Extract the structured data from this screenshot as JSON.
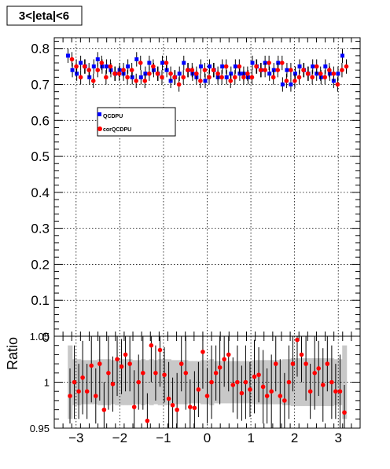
{
  "title": "3<|eta|<6",
  "colors": {
    "series_a": "#0000ff",
    "series_b": "#ff0000",
    "band": "#c8c8c8",
    "frame": "#000000"
  },
  "chart_data": [
    {
      "type": "scatter",
      "panel": "top",
      "title": "3<|eta|<6",
      "xlabel": "",
      "ylabel": "",
      "xlim": [
        -3.5,
        3.5
      ],
      "ylim": [
        0,
        0.83
      ],
      "grid": true,
      "legend_position": "upper-left",
      "x_ticks": [
        -3,
        -2,
        -1,
        0,
        1,
        2,
        3
      ],
      "y_ticks": [
        0.1,
        0.2,
        0.3,
        0.4,
        0.5,
        0.6,
        0.7,
        0.8
      ],
      "y_tick_labels": [
        "0.1",
        "0.2",
        "0.3",
        "0.4",
        "0.5",
        "0.6",
        "0.7",
        "0.8"
      ],
      "x": [
        -3.14,
        -3.04,
        -2.94,
        -2.85,
        -2.75,
        -2.65,
        -2.55,
        -2.46,
        -2.36,
        -2.26,
        -2.16,
        -2.06,
        -1.96,
        -1.87,
        -1.77,
        -1.67,
        -1.57,
        -1.47,
        -1.37,
        -1.28,
        -1.18,
        -1.08,
        -0.98,
        -0.88,
        -0.79,
        -0.69,
        -0.59,
        -0.49,
        -0.39,
        -0.29,
        -0.2,
        -0.1,
        0.0,
        0.1,
        0.2,
        0.29,
        0.39,
        0.49,
        0.59,
        0.69,
        0.79,
        0.88,
        0.98,
        1.08,
        1.18,
        1.28,
        1.37,
        1.47,
        1.57,
        1.67,
        1.77,
        1.87,
        1.96,
        2.06,
        2.16,
        2.26,
        2.36,
        2.46,
        2.55,
        2.65,
        2.75,
        2.85,
        2.94,
        3.04,
        3.14
      ],
      "series": [
        {
          "name": "QCDPU",
          "marker": "square",
          "values": [
            0.78,
            0.74,
            0.73,
            0.76,
            0.75,
            0.72,
            0.75,
            0.77,
            0.75,
            0.75,
            0.74,
            0.73,
            0.74,
            0.73,
            0.75,
            0.72,
            0.77,
            0.72,
            0.73,
            0.76,
            0.74,
            0.73,
            0.76,
            0.74,
            0.71,
            0.72,
            0.73,
            0.76,
            0.74,
            0.73,
            0.72,
            0.75,
            0.71,
            0.75,
            0.74,
            0.72,
            0.75,
            0.72,
            0.73,
            0.75,
            0.73,
            0.73,
            0.72,
            0.76,
            0.75,
            0.74,
            0.76,
            0.73,
            0.74,
            0.76,
            0.7,
            0.74,
            0.7,
            0.73,
            0.75,
            0.74,
            0.73,
            0.75,
            0.73,
            0.72,
            0.75,
            0.73,
            0.71,
            0.73,
            0.78
          ]
        },
        {
          "name": "corQCDPU",
          "marker": "circle",
          "values": [
            0.77,
            0.75,
            0.72,
            0.75,
            0.74,
            0.71,
            0.74,
            0.76,
            0.72,
            0.75,
            0.73,
            0.73,
            0.74,
            0.72,
            0.74,
            0.71,
            0.76,
            0.71,
            0.73,
            0.75,
            0.73,
            0.72,
            0.76,
            0.73,
            0.72,
            0.7,
            0.72,
            0.74,
            0.74,
            0.73,
            0.71,
            0.74,
            0.72,
            0.74,
            0.73,
            0.72,
            0.75,
            0.71,
            0.72,
            0.75,
            0.72,
            0.73,
            0.72,
            0.75,
            0.74,
            0.74,
            0.76,
            0.72,
            0.74,
            0.76,
            0.71,
            0.74,
            0.71,
            0.72,
            0.74,
            0.73,
            0.72,
            0.75,
            0.73,
            0.72,
            0.74,
            0.73,
            0.7,
            0.74,
            0.75
          ]
        }
      ],
      "error": [
        0.02,
        0.02,
        0.02,
        0.02,
        0.02,
        0.02,
        0.02,
        0.02,
        0.02,
        0.02,
        0.02,
        0.02,
        0.02,
        0.02,
        0.02,
        0.02,
        0.02,
        0.02,
        0.02,
        0.02,
        0.02,
        0.02,
        0.02,
        0.02,
        0.02,
        0.02,
        0.02,
        0.02,
        0.02,
        0.02,
        0.02,
        0.02,
        0.02,
        0.02,
        0.02,
        0.02,
        0.02,
        0.02,
        0.02,
        0.02,
        0.02,
        0.02,
        0.02,
        0.02,
        0.02,
        0.02,
        0.02,
        0.02,
        0.02,
        0.02,
        0.02,
        0.02,
        0.02,
        0.02,
        0.02,
        0.02,
        0.02,
        0.02,
        0.02,
        0.02,
        0.02,
        0.02,
        0.02,
        0.02,
        0.02
      ]
    },
    {
      "type": "scatter",
      "panel": "bottom",
      "xlabel": "",
      "ylabel": "Ratio",
      "xlim": [
        -3.5,
        3.5
      ],
      "ylim": [
        0.95,
        1.05
      ],
      "grid": true,
      "x_ticks": [
        -3,
        -2,
        -1,
        0,
        1,
        2,
        3
      ],
      "x_tick_labels": [
        "−3",
        "−2",
        "−1",
        "0",
        "1",
        "2",
        "3"
      ],
      "y_ticks": [
        0.95,
        1,
        1.05
      ],
      "y_tick_labels": [
        "0.95",
        "1",
        "1.05"
      ],
      "x": [
        -3.14,
        -3.04,
        -2.94,
        -2.85,
        -2.75,
        -2.65,
        -2.55,
        -2.46,
        -2.36,
        -2.26,
        -2.16,
        -2.06,
        -1.96,
        -1.87,
        -1.77,
        -1.67,
        -1.57,
        -1.47,
        -1.37,
        -1.28,
        -1.18,
        -1.08,
        -0.98,
        -0.88,
        -0.79,
        -0.69,
        -0.59,
        -0.49,
        -0.39,
        -0.29,
        -0.2,
        -0.1,
        0.0,
        0.1,
        0.2,
        0.29,
        0.39,
        0.49,
        0.59,
        0.69,
        0.79,
        0.88,
        0.98,
        1.08,
        1.18,
        1.28,
        1.37,
        1.47,
        1.57,
        1.67,
        1.77,
        1.87,
        1.96,
        2.06,
        2.16,
        2.26,
        2.36,
        2.46,
        2.55,
        2.65,
        2.75,
        2.85,
        2.94,
        3.04,
        3.14
      ],
      "band_halfwidth": [
        0.04,
        0.025,
        0.025,
        0.024,
        0.024,
        0.024,
        0.024,
        0.025,
        0.025,
        0.025,
        0.024,
        0.025,
        0.025,
        0.025,
        0.025,
        0.024,
        0.024,
        0.025,
        0.024,
        0.025,
        0.024,
        0.025,
        0.025,
        0.025,
        0.024,
        0.024,
        0.024,
        0.024,
        0.023,
        0.023,
        0.023,
        0.024,
        0.024,
        0.025,
        0.023,
        0.023,
        0.023,
        0.023,
        0.023,
        0.023,
        0.023,
        0.023,
        0.023,
        0.024,
        0.024,
        0.024,
        0.024,
        0.024,
        0.024,
        0.024,
        0.025,
        0.025,
        0.026,
        0.026,
        0.026,
        0.026,
        0.026,
        0.026,
        0.026,
        0.026,
        0.026,
        0.026,
        0.025,
        0.025,
        0.04
      ],
      "series": [
        {
          "name": "ratio",
          "marker": "circle",
          "values": [
            0.985,
            1.0,
            0.99,
            1.005,
            0.99,
            1.018,
            0.985,
            1.02,
            0.97,
            1.01,
            0.998,
            1.025,
            1.017,
            1.03,
            1.02,
            0.973,
            1.0,
            1.01,
            0.958,
            1.04,
            1.01,
            1.035,
            1.008,
            0.982,
            0.975,
            0.97,
            1.02,
            1.01,
            0.973,
            0.972,
            0.992,
            1.033,
            0.985,
            1.0,
            1.01,
            1.016,
            1.025,
            1.03,
            0.997,
            1.0,
            0.988,
            1.0,
            0.992,
            1.006,
            1.008,
            0.995,
            0.985,
            0.99,
            1.02,
            0.985,
            0.98,
            1.0,
            1.02,
            1.046,
            1.03,
            1.02,
            0.99,
            1.01,
            1.015,
            0.997,
            1.02,
            1.0,
            0.99,
            0.99,
            0.967
          ]
        }
      ],
      "error": [
        0.03,
        0.04,
        0.03,
        0.04,
        0.03,
        0.04,
        0.03,
        0.04,
        0.03,
        0.04,
        0.03,
        0.04,
        0.03,
        0.04,
        0.03,
        0.04,
        0.03,
        0.04,
        0.03,
        0.04,
        0.03,
        0.04,
        0.03,
        0.04,
        0.03,
        0.04,
        0.03,
        0.04,
        0.03,
        0.04,
        0.03,
        0.04,
        0.03,
        0.04,
        0.03,
        0.04,
        0.03,
        0.04,
        0.03,
        0.04,
        0.03,
        0.04,
        0.03,
        0.04,
        0.03,
        0.04,
        0.03,
        0.04,
        0.03,
        0.04,
        0.03,
        0.04,
        0.03,
        0.04,
        0.03,
        0.04,
        0.03,
        0.04,
        0.03,
        0.04,
        0.03,
        0.04,
        0.03,
        0.04,
        0.03
      ]
    }
  ]
}
